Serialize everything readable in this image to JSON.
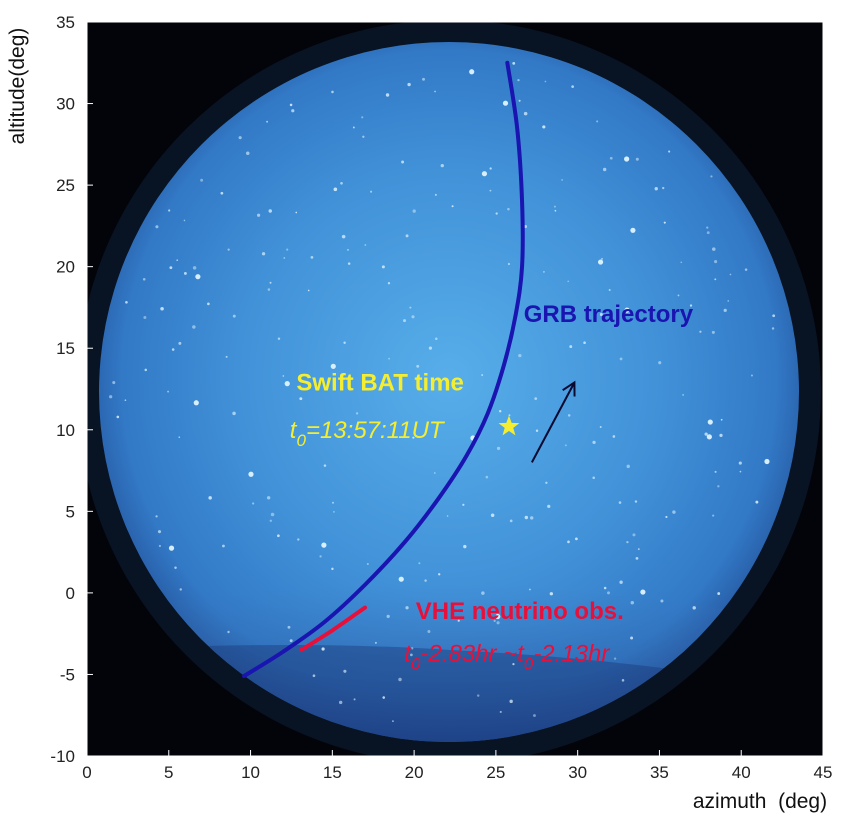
{
  "chart_data": {
    "type": "line",
    "xlabel": "azimuth  (deg)",
    "ylabel": "altitude(deg)",
    "xlim": [
      0,
      45
    ],
    "ylim": [
      -10,
      35
    ],
    "x_ticks": [
      "0",
      "5",
      "10",
      "15",
      "20",
      "25",
      "30",
      "35",
      "40",
      "45"
    ],
    "y_ticks": [
      "35",
      "30",
      "25",
      "20",
      "15",
      "10",
      "5",
      "0",
      "-5",
      "-10"
    ],
    "grid": false,
    "series": [
      {
        "name": "GRB trajectory",
        "color": "#1a14b0",
        "x": [
          9.6,
          12.0,
          14.5,
          17.0,
          19.5,
          21.5,
          23.2,
          24.5,
          25.5,
          26.2,
          26.6,
          26.6,
          26.3,
          25.7
        ],
        "y": [
          -5.1,
          -3.6,
          -1.8,
          0.5,
          3.2,
          5.8,
          8.4,
          11.0,
          14.0,
          17.0,
          20.0,
          24.0,
          28.5,
          32.5
        ]
      },
      {
        "name": "VHE neutrino obs.",
        "color": "#e8103a",
        "x": [
          13.1,
          15.0,
          17.0
        ],
        "y": [
          -3.5,
          -2.3,
          -0.9
        ]
      }
    ],
    "annotations": {
      "grb_label": {
        "text": "GRB trajectory",
        "color": "#1a14b0",
        "x": 26.7,
        "y": 16.6
      },
      "swift_title": {
        "text": "Swift BAT time",
        "color": "#f5ee30",
        "x": 12.8,
        "y": 12.4
      },
      "swift_time": {
        "t": "t",
        "sub": "0",
        "rest": "=13:57:11UT",
        "color": "#f5ee30",
        "x": 12.4,
        "y": 9.5
      },
      "star": {
        "x": 25.8,
        "y": 10.2,
        "color": "#f5ee30"
      },
      "vhe_title": {
        "text": "VHE neutrino obs.",
        "color": "#e8103a",
        "x": 20.1,
        "y": -1.6
      },
      "vhe_time": {
        "t1": "t",
        "sub1": "0",
        "mid": "-2.83hr ~",
        "t2": "t",
        "sub2": "0",
        "end": "-2.13hr",
        "color": "#e8103a",
        "x": 19.4,
        "y": -4.2
      },
      "arrow": {
        "from": [
          27.2,
          8.0
        ],
        "to": [
          29.8,
          12.9
        ],
        "color": "#0a0a30"
      }
    }
  }
}
